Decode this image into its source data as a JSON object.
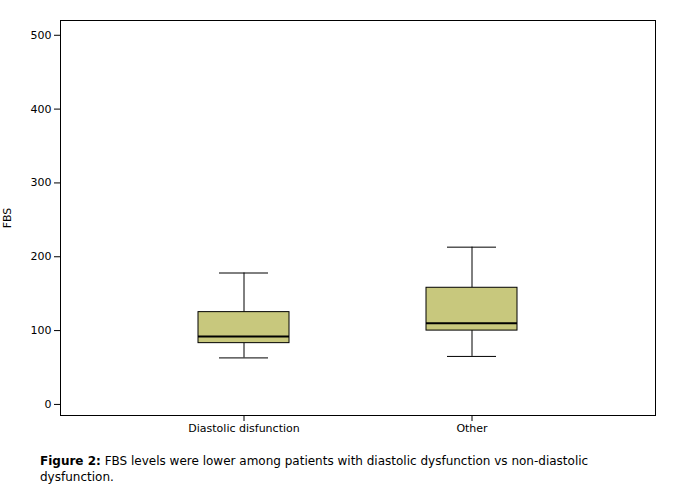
{
  "chart_data": {
    "type": "box",
    "categories": [
      "Diastolic disfunction",
      "Other"
    ],
    "boxes": [
      {
        "whisker_low": 63,
        "q1": 83,
        "median": 92,
        "q3": 125,
        "whisker_high": 178
      },
      {
        "whisker_low": 65,
        "q1": 100,
        "median": 110,
        "q3": 158,
        "whisker_high": 213
      }
    ],
    "color": "#c8c87d",
    "edge_color": "#000000",
    "ylabel": "FBS",
    "ylim": [
      -15,
      520
    ],
    "yticks": [
      0,
      100,
      200,
      300,
      400,
      500
    ],
    "caption": "Figure 2: FBS levels were lower among patients with diastolic dysfunction vs non-diastolic dysfunction."
  }
}
